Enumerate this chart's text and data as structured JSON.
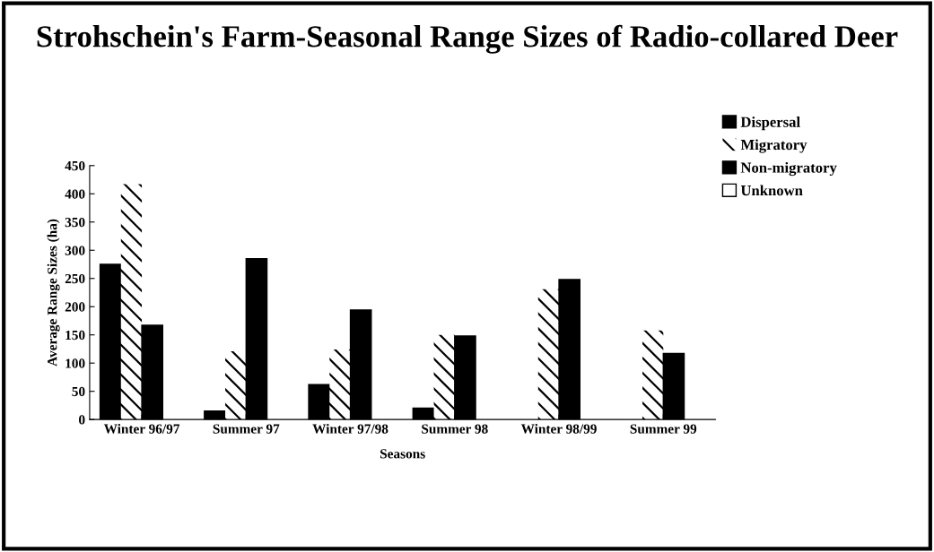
{
  "chart_data": {
    "type": "bar",
    "title": "Strohschein's Farm-Seasonal Range Sizes of Radio-collared Deer",
    "xlabel": "Seasons",
    "ylabel": "Average Range Sizes (ha)",
    "categories": [
      "Winter 96/97",
      "Summer 97",
      "Winter 97/98",
      "Summer 98",
      "Winter 98/99",
      "Summer 99"
    ],
    "series": [
      {
        "name": "Dispersal",
        "color": "#000000",
        "values": [
          275,
          15,
          62,
          20,
          null,
          null
        ]
      },
      {
        "name": "Migratory",
        "color": "#ffffff",
        "values": [
          417,
          121,
          124,
          150,
          231,
          158
        ]
      },
      {
        "name": "Non-migratory",
        "color": "#000000",
        "values": [
          167,
          285,
          194,
          148,
          248,
          117
        ]
      },
      {
        "name": "Unknown",
        "color": "#ffffff",
        "values": [
          null,
          null,
          null,
          null,
          null,
          null
        ]
      }
    ],
    "ylim": [
      0,
      450
    ],
    "yticks": [
      0,
      50,
      100,
      150,
      200,
      250,
      300,
      350,
      400,
      450
    ],
    "grid": false,
    "legend": "top right"
  }
}
